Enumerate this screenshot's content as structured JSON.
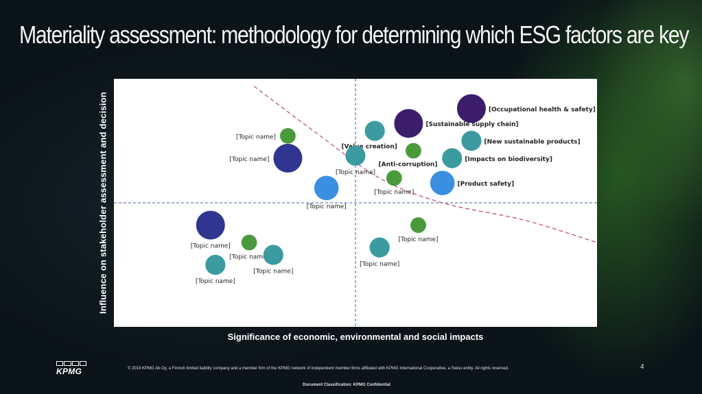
{
  "slide": {
    "title": "Materiality assessment: methodology for determining which ESG factors are key",
    "copyright": "© 2019 KPMG Ab Oy, a Finnish limited liability company and a member firm of the KPMG network of independent member firms affiliated with KPMG International Cooperative, a Swiss entity. All rights reserved.",
    "classification": "Document Classification: KPMG Confidential",
    "page_number": "4",
    "logo_text": "KPMG"
  },
  "colors": {
    "background": "#0b1418",
    "plot_background": "#ffffff",
    "divider": "#2f5fa0",
    "threshold_curve": "#c0508a",
    "dark_purple": "#3b1d6b",
    "navy": "#2f3590",
    "teal": "#3b9ba0",
    "blue": "#3a8fe0",
    "green": "#4a9a3c"
  },
  "chart_data": {
    "type": "scatter",
    "subtype": "bubble",
    "xlabel": "Significance of economic, environmental and social impacts",
    "ylabel": "Influence on stakeholder assessment and decision",
    "xlim": [
      0,
      100
    ],
    "ylim": [
      0,
      100
    ],
    "grid": false,
    "ticks_shown": false,
    "quadrant_dividers": {
      "x": 50,
      "y": 50,
      "style": "dashed"
    },
    "threshold_curve": {
      "style": "dashed",
      "points": [
        [
          29,
          97
        ],
        [
          42,
          78
        ],
        [
          55,
          60
        ],
        [
          68,
          50
        ],
        [
          85,
          43
        ],
        [
          100,
          34
        ]
      ]
    },
    "points": [
      {
        "label": "[Occupational health & safety]",
        "x": 74,
        "y": 88,
        "size": 5,
        "color": "dark_purple",
        "bold": true
      },
      {
        "label": "[Sustainable supply chain]",
        "x": 61,
        "y": 82,
        "size": 5,
        "color": "dark_purple",
        "bold": true
      },
      {
        "label": "[New sustainable products]",
        "x": 74,
        "y": 75,
        "size": 3,
        "color": "teal",
        "bold": true
      },
      {
        "label": "[Value creation]",
        "x": 54,
        "y": 79,
        "size": 3,
        "color": "teal",
        "bold": true
      },
      {
        "label": "[Anti-corruption]",
        "x": 62,
        "y": 71,
        "size": 2,
        "color": "green",
        "bold": true
      },
      {
        "label": "[Impacts on biodiversity]",
        "x": 70,
        "y": 68,
        "size": 3,
        "color": "teal",
        "bold": true
      },
      {
        "label": "[Product safety]",
        "x": 68,
        "y": 58,
        "size": 4,
        "color": "blue",
        "bold": true
      },
      {
        "label": "[Topic name]",
        "x": 50,
        "y": 69,
        "size": 3,
        "color": "teal",
        "bold": false
      },
      {
        "label": "[Topic name]",
        "x": 58,
        "y": 60,
        "size": 2,
        "color": "green",
        "bold": false
      },
      {
        "label": "[Topic name]",
        "x": 44,
        "y": 56,
        "size": 4,
        "color": "blue",
        "bold": false
      },
      {
        "label": "[Topic name]",
        "x": 36,
        "y": 77,
        "size": 2,
        "color": "green",
        "bold": false
      },
      {
        "label": "[Topic name]",
        "x": 36,
        "y": 68,
        "size": 5,
        "color": "navy",
        "bold": false
      },
      {
        "label": "[Topic name]",
        "x": 63,
        "y": 41,
        "size": 2,
        "color": "green",
        "bold": false
      },
      {
        "label": "[Topic name]",
        "x": 55,
        "y": 32,
        "size": 3,
        "color": "teal",
        "bold": false
      },
      {
        "label": "[Topic name]",
        "x": 20,
        "y": 41,
        "size": 5,
        "color": "navy",
        "bold": false
      },
      {
        "label": "[Topic name]",
        "x": 28,
        "y": 34,
        "size": 2,
        "color": "green",
        "bold": false
      },
      {
        "label": "[Topic name]",
        "x": 33,
        "y": 29,
        "size": 3,
        "color": "teal",
        "bold": false
      },
      {
        "label": "[Topic name]",
        "x": 21,
        "y": 25,
        "size": 3,
        "color": "teal",
        "bold": false
      }
    ]
  }
}
